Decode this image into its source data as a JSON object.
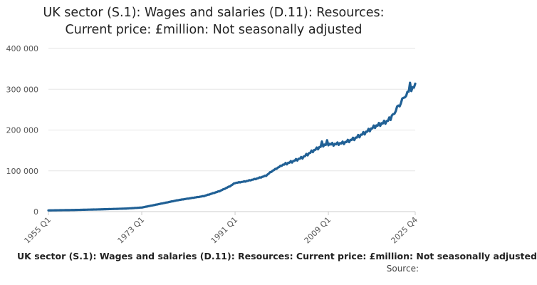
{
  "chart_data": {
    "type": "line",
    "title_line1": "UK sector (S.1): Wages and salaries (D.11): Resources:",
    "title_line2": "Current price: £million: Not seasonally adjusted",
    "footer_title": "UK sector (S.1): Wages and salaries (D.11): Resources: Current price: £million: Not seasonally adjusted",
    "source_label": "Source:",
    "ylim": [
      0,
      400000
    ],
    "y_ticks": [
      {
        "value": 0,
        "label": "0"
      },
      {
        "value": 100000,
        "label": "100 000"
      },
      {
        "value": 200000,
        "label": "200 000"
      },
      {
        "value": 300000,
        "label": "300 000"
      },
      {
        "value": 400000,
        "label": "400 000"
      }
    ],
    "x_ticks": [
      "1955 Q1",
      "1973 Q1",
      "1991 Q1",
      "2009 Q1",
      "2025 Q4"
    ],
    "grid": "horizontal",
    "line_color": "#206095",
    "series": [
      {
        "anchor_points": [
          {
            "x": "1955 Q1",
            "y": 3000
          },
          {
            "x": "1960 Q1",
            "y": 4000
          },
          {
            "x": "1965 Q1",
            "y": 5500
          },
          {
            "x": "1970 Q1",
            "y": 7500
          },
          {
            "x": "1973 Q1",
            "y": 10000
          },
          {
            "x": "1975 Q1",
            "y": 15000
          },
          {
            "x": "1980 Q1",
            "y": 28000
          },
          {
            "x": "1985 Q1",
            "y": 38000
          },
          {
            "x": "1988 Q1",
            "y": 50000
          },
          {
            "x": "1990 Q1",
            "y": 62000
          },
          {
            "x": "1991 Q1",
            "y": 70000
          },
          {
            "x": "1993 Q1",
            "y": 74000
          },
          {
            "x": "1995 Q1",
            "y": 80000
          },
          {
            "x": "1997 Q1",
            "y": 88000
          },
          {
            "x": "1998 Q1",
            "y": 98000
          },
          {
            "x": "2000 Q1",
            "y": 113000
          },
          {
            "x": "2002 Q1",
            "y": 122000
          },
          {
            "x": "2004 Q1",
            "y": 132000
          },
          {
            "x": "2006 Q1",
            "y": 148000
          },
          {
            "x": "2008 Q1",
            "y": 162000
          },
          {
            "x": "2009 Q1",
            "y": 165000
          },
          {
            "x": "2010 Q1",
            "y": 164000
          },
          {
            "x": "2012 Q1",
            "y": 168000
          },
          {
            "x": "2014 Q1",
            "y": 178000
          },
          {
            "x": "2016 Q1",
            "y": 192000
          },
          {
            "x": "2018 Q1",
            "y": 208000
          },
          {
            "x": "2020 Q2",
            "y": 220000
          },
          {
            "x": "2021 Q1",
            "y": 228000
          },
          {
            "x": "2022 Q1",
            "y": 250000
          },
          {
            "x": "2023 Q1",
            "y": 270000
          },
          {
            "x": "2024 Q1",
            "y": 288000
          },
          {
            "x": "2025 Q1",
            "y": 300000
          },
          {
            "x": "2025 Q4",
            "y": 306000
          }
        ],
        "q4_peaks": [
          {
            "x": "2007 Q4",
            "y": 172000
          },
          {
            "x": "2008 Q4",
            "y": 175000
          },
          {
            "x": "2021 Q4",
            "y": 240000
          },
          {
            "x": "2022 Q4",
            "y": 258000
          },
          {
            "x": "2023 Q4",
            "y": 280000
          },
          {
            "x": "2024 Q4",
            "y": 316000
          }
        ]
      }
    ]
  }
}
